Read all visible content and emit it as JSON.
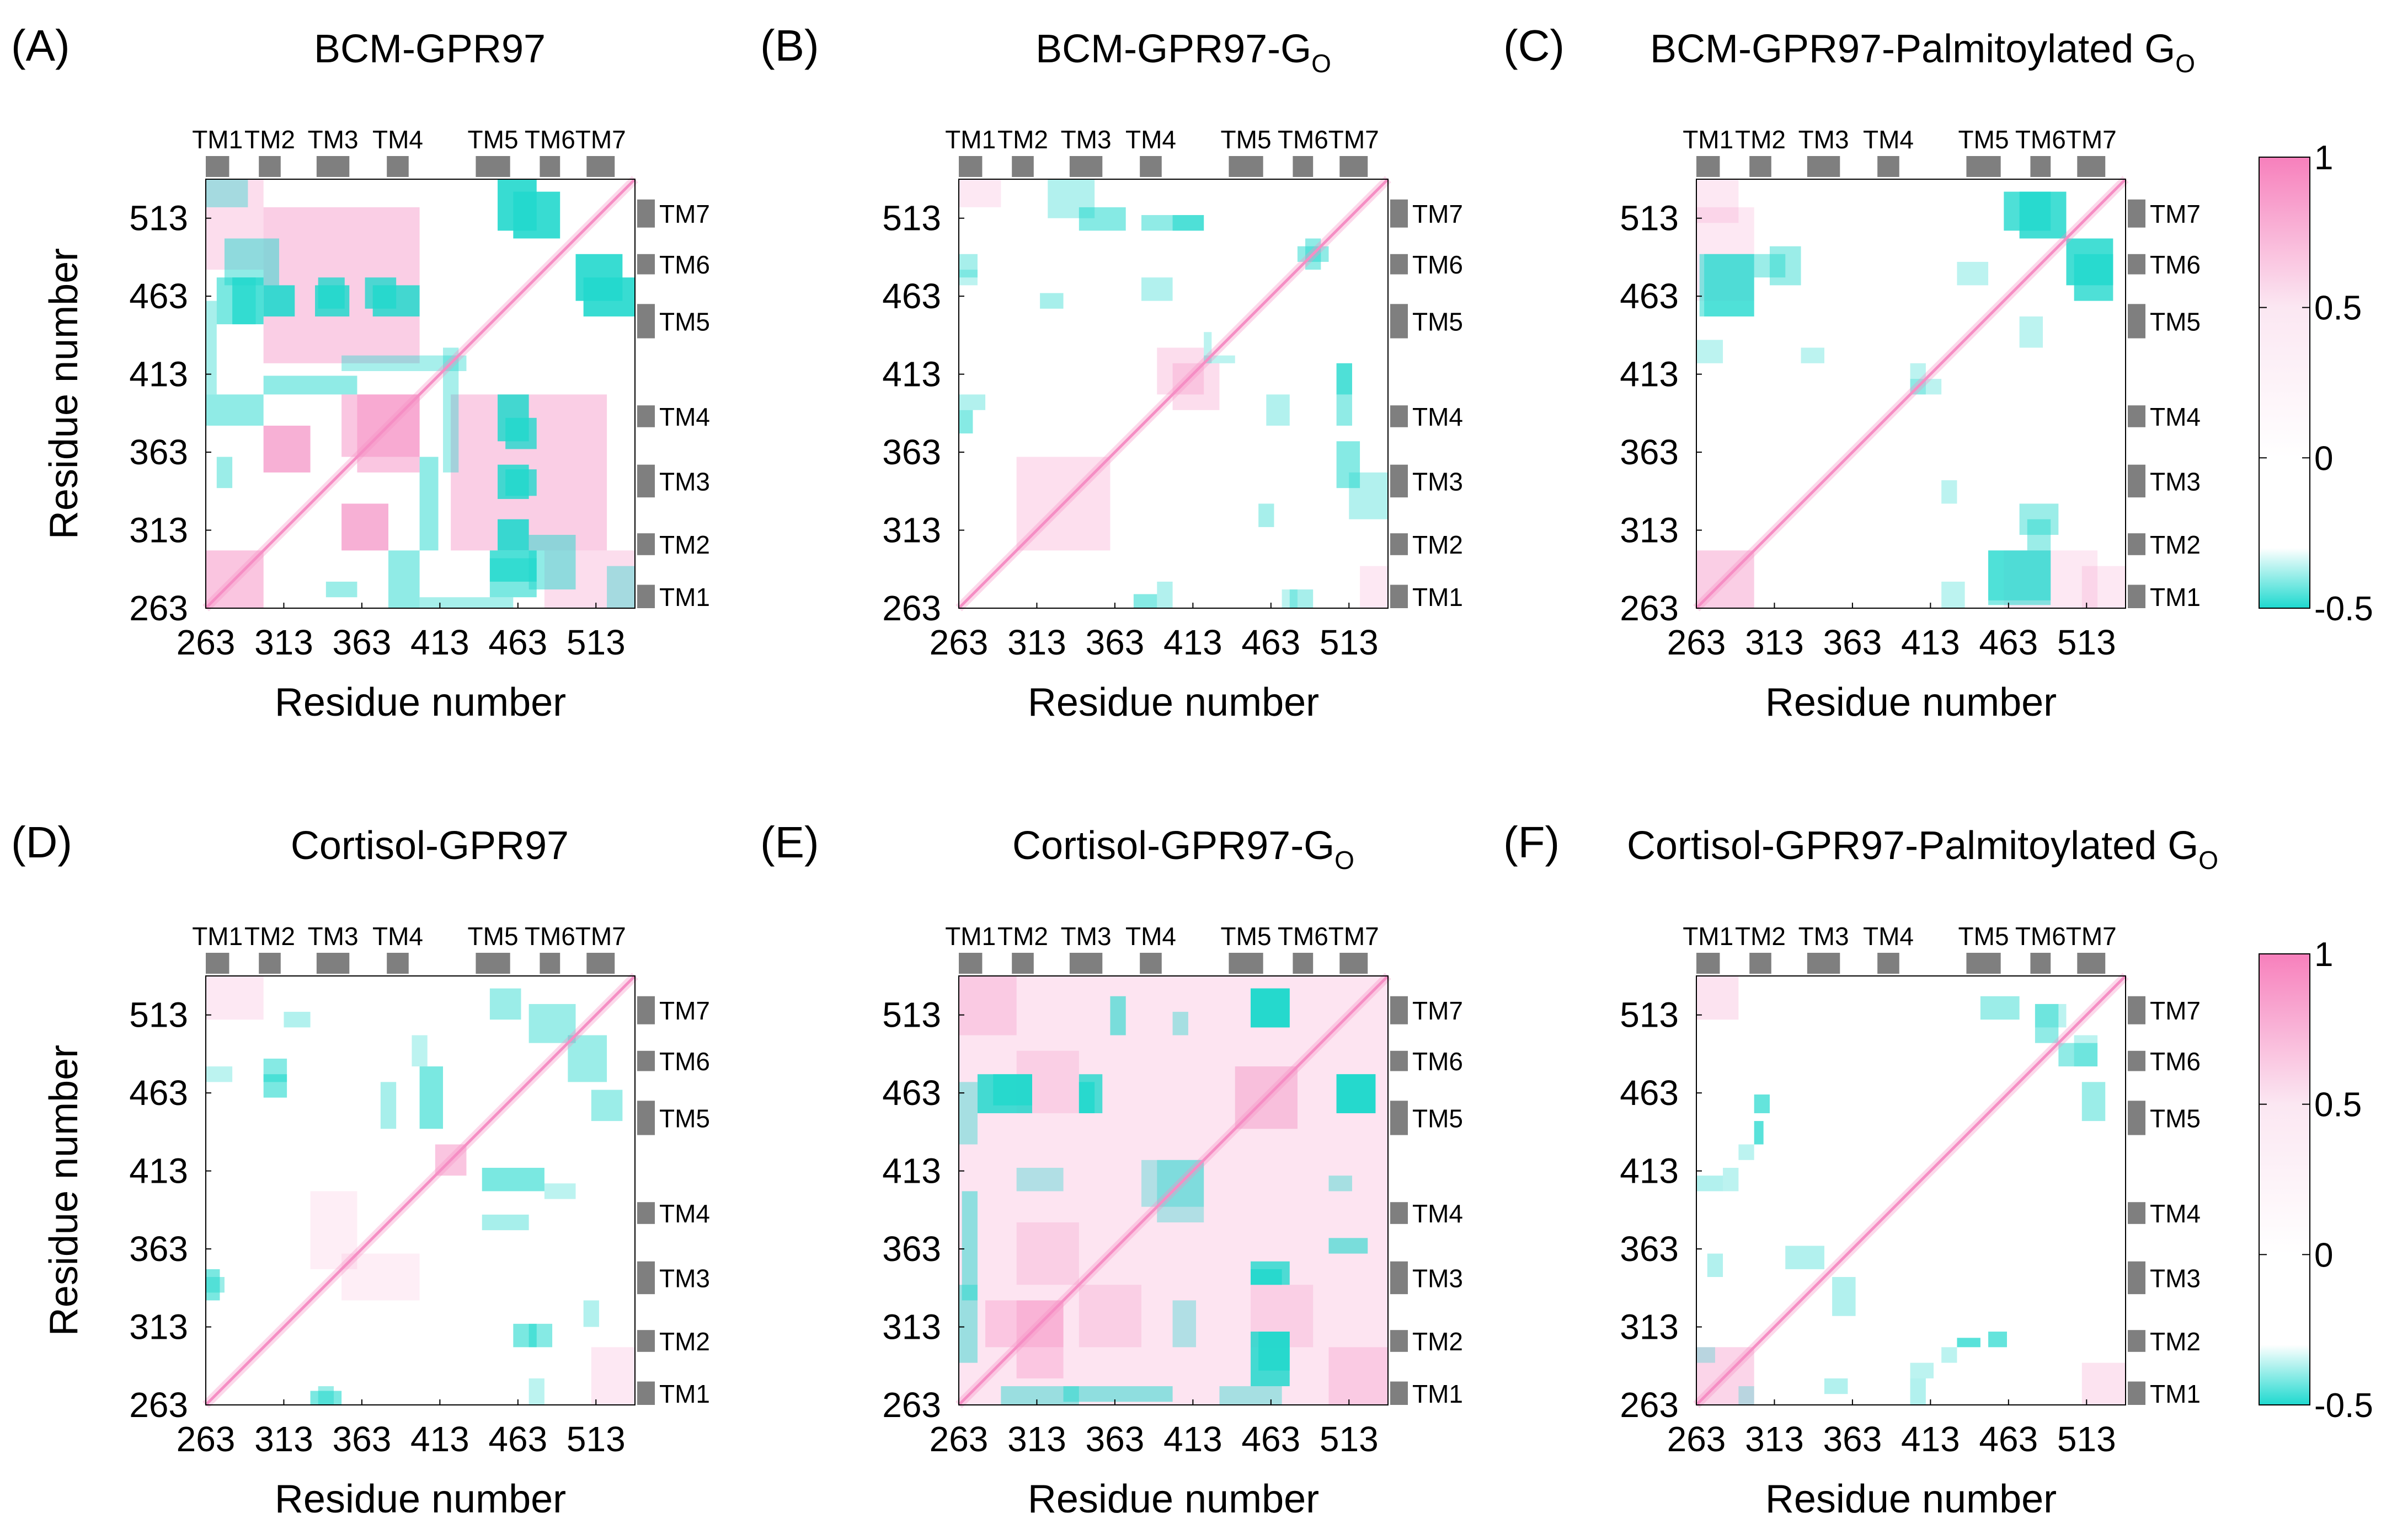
{
  "figure": {
    "xlabel": "Residue number",
    "ylabel": "Residue number",
    "tick_values": [
      263,
      313,
      363,
      413,
      463,
      513
    ],
    "residue_range": [
      263,
      538
    ]
  },
  "colorbar": {
    "ticks": [
      "1",
      "0.5",
      "0",
      "-0.5"
    ],
    "range": [
      -0.5,
      1.0
    ],
    "stops": [
      {
        "value": 1.0,
        "color": "#f780bc"
      },
      {
        "value": 0.5,
        "color": "#fbe7f2"
      },
      {
        "value": 0.0,
        "color": "#ffffff"
      },
      {
        "value": -0.3,
        "color": "#ffffff"
      },
      {
        "value": -0.5,
        "color": "#1ed9cf"
      }
    ]
  },
  "tm_segments": [
    {
      "label": "TM1",
      "start": 263,
      "end": 278
    },
    {
      "label": "TM2",
      "start": 297,
      "end": 311
    },
    {
      "label": "TM3",
      "start": 334,
      "end": 355
    },
    {
      "label": "TM4",
      "start": 379,
      "end": 393
    },
    {
      "label": "TM5",
      "start": 436,
      "end": 458
    },
    {
      "label": "TM6",
      "start": 477,
      "end": 490
    },
    {
      "label": "TM7",
      "start": 507,
      "end": 525
    }
  ],
  "colors": {
    "pink": "#f58ec4",
    "cyan": "#22d8cd",
    "tm_bar": "#7f7f7f"
  },
  "chart_data": [
    {
      "type": "heatmap",
      "panel_label": "(A)",
      "title": "BCM-GPR97",
      "title_sub": "",
      "pink_blocks": [
        [
          300,
          330,
          350,
          380,
          0.45
        ],
        [
          350,
          380,
          300,
          330,
          0.45
        ],
        [
          360,
          400,
          350,
          400,
          0.5
        ],
        [
          263,
          300,
          263,
          300,
          0.3
        ],
        [
          420,
          520,
          300,
          400,
          0.25
        ],
        [
          300,
          400,
          420,
          520,
          0.25
        ],
        [
          480,
          538,
          263,
          300,
          0.3
        ]
      ],
      "cyan_blocks": [
        [
          280,
          300,
          445,
          475,
          0.8
        ],
        [
          335,
          352,
          455,
          475,
          0.8
        ],
        [
          365,
          385,
          455,
          475,
          0.8
        ],
        [
          450,
          470,
          370,
          400,
          0.85
        ],
        [
          450,
          470,
          333,
          355,
          0.85
        ],
        [
          450,
          470,
          300,
          320,
          0.9
        ],
        [
          445,
          475,
          270,
          295,
          0.6
        ],
        [
          470,
          500,
          275,
          310,
          0.5
        ],
        [
          460,
          490,
          500,
          530,
          0.9
        ],
        [
          505,
          538,
          450,
          475,
          0.9
        ],
        [
          300,
          360,
          400,
          412,
          0.5
        ],
        [
          263,
          300,
          380,
          400,
          0.5
        ],
        [
          350,
          430,
          415,
          425,
          0.4
        ],
        [
          400,
          460,
          263,
          270,
          0.4
        ],
        [
          340,
          360,
          270,
          280,
          0.45
        ],
        [
          263,
          290,
          520,
          538,
          0.4
        ]
      ]
    },
    {
      "type": "heatmap",
      "panel_label": "(B)",
      "title": "BCM-GPR97-G",
      "title_sub": "O",
      "pink_blocks": [
        [
          300,
          360,
          300,
          360,
          0.15
        ],
        [
          263,
          290,
          520,
          538,
          0.2
        ],
        [
          400,
          430,
          390,
          420,
          0.3
        ]
      ],
      "cyan_blocks": [
        [
          340,
          370,
          505,
          520,
          0.55
        ],
        [
          400,
          420,
          505,
          515,
          0.6
        ],
        [
          480,
          500,
          485,
          495,
          0.5
        ],
        [
          375,
          390,
          263,
          272,
          0.55
        ],
        [
          475,
          490,
          263,
          275,
          0.4
        ],
        [
          455,
          465,
          315,
          330,
          0.4
        ],
        [
          505,
          515,
          380,
          420,
          0.5
        ],
        [
          263,
          280,
          390,
          400,
          0.35
        ],
        [
          420,
          440,
          420,
          425,
          0.3
        ],
        [
          380,
          400,
          460,
          475,
          0.35
        ],
        [
          513,
          538,
          320,
          350,
          0.35
        ],
        [
          263,
          275,
          470,
          480,
          0.3
        ]
      ]
    },
    {
      "type": "heatmap",
      "panel_label": "(C)",
      "title": "BCM-GPR97-Palmitoylated G",
      "title_sub": "O",
      "pink_blocks": [
        [
          263,
          300,
          263,
          300,
          0.25
        ],
        [
          263,
          290,
          510,
          538,
          0.2
        ],
        [
          460,
          520,
          263,
          300,
          0.2
        ]
      ],
      "cyan_blocks": [
        [
          470,
          500,
          500,
          530,
          0.85
        ],
        [
          505,
          530,
          460,
          490,
          0.8
        ],
        [
          265,
          300,
          450,
          490,
          0.55
        ],
        [
          300,
          320,
          475,
          490,
          0.45
        ],
        [
          450,
          490,
          268,
          300,
          0.55
        ],
        [
          470,
          495,
          310,
          330,
          0.45
        ],
        [
          263,
          280,
          420,
          435,
          0.3
        ],
        [
          330,
          345,
          420,
          430,
          0.3
        ],
        [
          400,
          420,
          400,
          410,
          0.3
        ],
        [
          430,
          450,
          470,
          485,
          0.3
        ]
      ]
    },
    {
      "type": "heatmap",
      "panel_label": "(D)",
      "title": "Cortisol-GPR97",
      "title_sub": "",
      "pink_blocks": [
        [
          263,
          300,
          510,
          538,
          0.2
        ],
        [
          410,
          430,
          410,
          430,
          0.3
        ],
        [
          350,
          400,
          330,
          360,
          0.15
        ]
      ],
      "cyan_blocks": [
        [
          300,
          315,
          460,
          475,
          0.6
        ],
        [
          400,
          415,
          440,
          480,
          0.6
        ],
        [
          440,
          470,
          375,
          385,
          0.4
        ],
        [
          330,
          350,
          263,
          272,
          0.6
        ],
        [
          263,
          275,
          335,
          345,
          0.45
        ],
        [
          470,
          485,
          300,
          315,
          0.55
        ],
        [
          445,
          465,
          510,
          530,
          0.45
        ],
        [
          495,
          520,
          470,
          500,
          0.45
        ],
        [
          313,
          330,
          505,
          515,
          0.35
        ],
        [
          263,
          280,
          470,
          480,
          0.3
        ],
        [
          480,
          500,
          395,
          405,
          0.3
        ]
      ]
    },
    {
      "type": "heatmap",
      "panel_label": "(E)",
      "title": "Cortisol-GPR97-G",
      "title_sub": "O",
      "pink_blocks": [
        [
          263,
          538,
          263,
          538,
          0.12
        ],
        [
          300,
          330,
          280,
          330,
          0.35
        ],
        [
          340,
          380,
          300,
          340,
          0.25
        ],
        [
          440,
          480,
          440,
          480,
          0.25
        ],
        [
          263,
          300,
          500,
          538,
          0.3
        ],
        [
          450,
          490,
          300,
          340,
          0.25
        ]
      ],
      "cyan_blocks": [
        [
          285,
          310,
          455,
          475,
          0.85
        ],
        [
          340,
          355,
          450,
          475,
          0.8
        ],
        [
          450,
          475,
          505,
          530,
          0.9
        ],
        [
          505,
          530,
          450,
          475,
          0.85
        ],
        [
          450,
          470,
          340,
          350,
          0.85
        ],
        [
          450,
          475,
          275,
          310,
          0.85
        ],
        [
          360,
          370,
          500,
          525,
          0.6
        ],
        [
          330,
          400,
          265,
          275,
          0.5
        ],
        [
          263,
          275,
          290,
          340,
          0.45
        ],
        [
          263,
          275,
          430,
          470,
          0.4
        ],
        [
          400,
          410,
          500,
          515,
          0.4
        ],
        [
          300,
          330,
          400,
          415,
          0.35
        ],
        [
          380,
          420,
          390,
          420,
          0.35
        ]
      ]
    },
    {
      "type": "heatmap",
      "panel_label": "(F)",
      "title": "Cortisol-GPR97-Palmitoylated G",
      "title_sub": "O",
      "pink_blocks": [
        [
          263,
          300,
          263,
          300,
          0.2
        ],
        [
          263,
          290,
          510,
          538,
          0.25
        ]
      ],
      "cyan_blocks": [
        [
          300,
          310,
          450,
          462,
          0.7
        ],
        [
          430,
          445,
          300,
          306,
          0.75
        ],
        [
          445,
          470,
          510,
          525,
          0.45
        ],
        [
          495,
          520,
          480,
          495,
          0.5
        ],
        [
          263,
          280,
          400,
          410,
          0.35
        ],
        [
          320,
          345,
          350,
          365,
          0.35
        ],
        [
          345,
          360,
          270,
          280,
          0.35
        ],
        [
          263,
          275,
          290,
          300,
          0.3
        ],
        [
          400,
          415,
          280,
          290,
          0.3
        ],
        [
          480,
          500,
          505,
          520,
          0.3
        ],
        [
          290,
          300,
          420,
          430,
          0.3
        ]
      ]
    }
  ]
}
